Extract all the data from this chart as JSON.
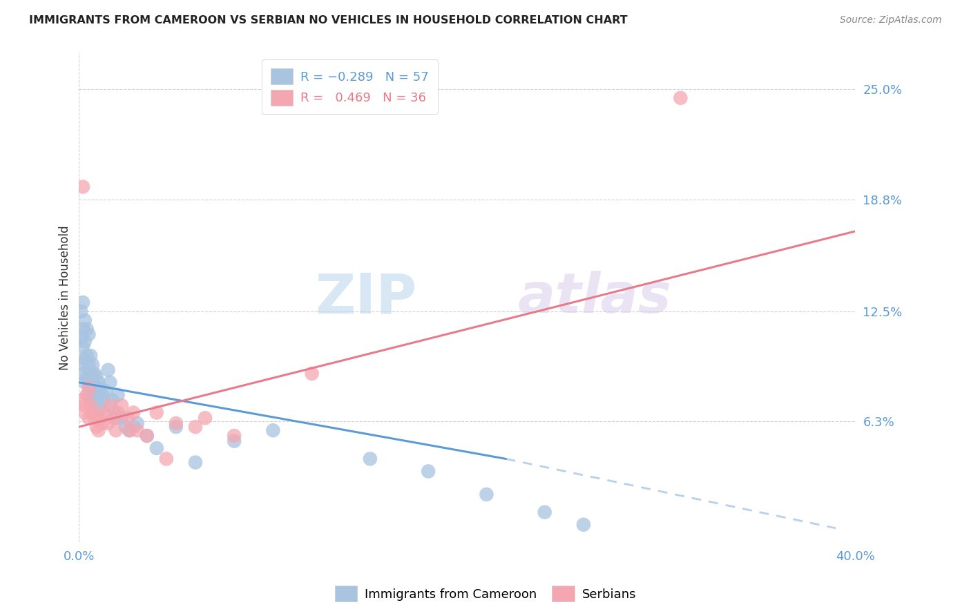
{
  "title": "IMMIGRANTS FROM CAMEROON VS SERBIAN NO VEHICLES IN HOUSEHOLD CORRELATION CHART",
  "source": "Source: ZipAtlas.com",
  "ylabel": "No Vehicles in Household",
  "ytick_labels": [
    "6.3%",
    "12.5%",
    "18.8%",
    "25.0%"
  ],
  "ytick_values": [
    0.063,
    0.125,
    0.188,
    0.25
  ],
  "xlim": [
    0.0,
    0.4
  ],
  "ylim": [
    -0.005,
    0.27
  ],
  "blue_color": "#a8c4e0",
  "pink_color": "#f4a7b0",
  "blue_line_color": "#5b9bd5",
  "pink_line_color": "#e87a8a",
  "watermark_zip": "ZIP",
  "watermark_atlas": "atlas",
  "blue_scatter_x": [
    0.001,
    0.001,
    0.001,
    0.002,
    0.002,
    0.002,
    0.002,
    0.003,
    0.003,
    0.003,
    0.003,
    0.004,
    0.004,
    0.004,
    0.005,
    0.005,
    0.005,
    0.005,
    0.006,
    0.006,
    0.006,
    0.007,
    0.007,
    0.007,
    0.008,
    0.008,
    0.009,
    0.009,
    0.01,
    0.01,
    0.011,
    0.011,
    0.012,
    0.013,
    0.014,
    0.015,
    0.016,
    0.017,
    0.018,
    0.019,
    0.02,
    0.022,
    0.024,
    0.026,
    0.028,
    0.03,
    0.035,
    0.04,
    0.05,
    0.06,
    0.08,
    0.1,
    0.15,
    0.18,
    0.21,
    0.24,
    0.26
  ],
  "blue_scatter_y": [
    0.125,
    0.11,
    0.095,
    0.13,
    0.115,
    0.105,
    0.09,
    0.12,
    0.108,
    0.098,
    0.085,
    0.115,
    0.1,
    0.088,
    0.112,
    0.095,
    0.085,
    0.078,
    0.1,
    0.09,
    0.08,
    0.095,
    0.085,
    0.075,
    0.09,
    0.078,
    0.088,
    0.075,
    0.085,
    0.072,
    0.082,
    0.07,
    0.078,
    0.075,
    0.08,
    0.092,
    0.085,
    0.075,
    0.068,
    0.065,
    0.078,
    0.065,
    0.06,
    0.058,
    0.06,
    0.062,
    0.055,
    0.048,
    0.06,
    0.04,
    0.052,
    0.058,
    0.042,
    0.035,
    0.022,
    0.012,
    0.005
  ],
  "pink_scatter_x": [
    0.001,
    0.002,
    0.003,
    0.003,
    0.004,
    0.005,
    0.005,
    0.006,
    0.007,
    0.008,
    0.009,
    0.01,
    0.011,
    0.012,
    0.013,
    0.015,
    0.016,
    0.018,
    0.019,
    0.02,
    0.022,
    0.025,
    0.026,
    0.028,
    0.03,
    0.035,
    0.04,
    0.045,
    0.05,
    0.06,
    0.065,
    0.08,
    0.12,
    0.31
  ],
  "pink_scatter_y": [
    0.075,
    0.195,
    0.068,
    0.072,
    0.078,
    0.082,
    0.065,
    0.072,
    0.068,
    0.065,
    0.06,
    0.058,
    0.065,
    0.062,
    0.068,
    0.062,
    0.072,
    0.065,
    0.058,
    0.068,
    0.072,
    0.065,
    0.058,
    0.068,
    0.058,
    0.055,
    0.068,
    0.042,
    0.062,
    0.06,
    0.065,
    0.055,
    0.09,
    0.245
  ],
  "blue_line_x0": 0.0,
  "blue_line_y0": 0.085,
  "blue_line_x1": 0.22,
  "blue_line_y1": 0.042,
  "blue_line_dash_x0": 0.22,
  "blue_line_dash_y0": 0.042,
  "blue_line_dash_x1": 0.39,
  "blue_line_dash_y1": 0.003,
  "pink_line_x0": 0.0,
  "pink_line_y0": 0.06,
  "pink_line_x1": 0.4,
  "pink_line_y1": 0.17
}
